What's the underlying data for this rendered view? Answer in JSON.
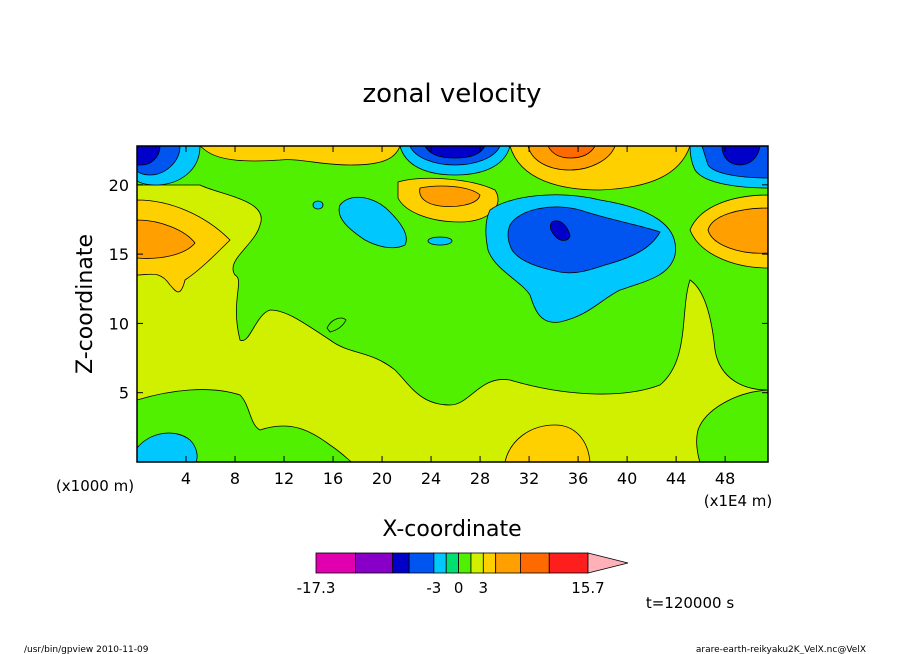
{
  "chart_data": {
    "type": "contour",
    "title": "zonal velocity",
    "xlabel": "X-coordinate",
    "ylabel": "Z-coordinate",
    "x_unit_left": "(x1000 m)",
    "x_unit_right": "(x1E4 m)",
    "x_ticks": [
      "4",
      "8",
      "12",
      "16",
      "20",
      "24",
      "28",
      "32",
      "36",
      "40",
      "44",
      "48"
    ],
    "y_ticks": [
      "5",
      "10",
      "15",
      "20"
    ],
    "xlim": [
      0,
      51.5
    ],
    "ylim": [
      0,
      22.8
    ],
    "time_label": "t=120000 s",
    "colorbar": {
      "tick_labels": [
        "-17.3",
        "-3",
        "0",
        "3",
        "15.7"
      ],
      "levels": [
        -17.3,
        -12.5,
        -8,
        -6,
        -3,
        -1.5,
        0,
        1.5,
        3,
        4.5,
        7.5,
        11,
        15.7
      ],
      "colors": [
        "#e000b0",
        "#8800c8",
        "#0000c8",
        "#0055f0",
        "#00c8ff",
        "#00e070",
        "#50f000",
        "#d0f000",
        "#ffd000",
        "#ffa000",
        "#ff6a00",
        "#ff1e1e",
        "#ff7070"
      ],
      "max_arrow_color": "#ffb0b8"
    },
    "fields": [
      {
        "level": "negative-strong",
        "x": 34,
        "z": 16.5,
        "value": -8
      },
      {
        "level": "negative-moderate",
        "x": 26,
        "z": 22.5,
        "value": -6
      },
      {
        "level": "negative-weak",
        "x": 19,
        "z": 17.5,
        "value": -1.5
      },
      {
        "level": "positive-moderate",
        "x": 3,
        "z": 16.5,
        "value": 6
      },
      {
        "level": "positive-moderate",
        "x": 48,
        "z": 17,
        "value": 6
      },
      {
        "level": "positive-moderate",
        "x": 35,
        "z": 22,
        "value": 7
      },
      {
        "level": "positive-weak",
        "x": 24,
        "z": 19,
        "value": 3
      },
      {
        "level": "negative-weak",
        "x": 1.5,
        "z": 1,
        "value": -1.5
      },
      {
        "level": "positive-weak",
        "x": 33,
        "z": 1.5,
        "value": 3
      }
    ],
    "grid": false
  },
  "footer": {
    "left": "/usr/bin/gpview  2010-11-09",
    "right": "arare-earth-reikyaku2K_VelX.nc@VelX"
  }
}
